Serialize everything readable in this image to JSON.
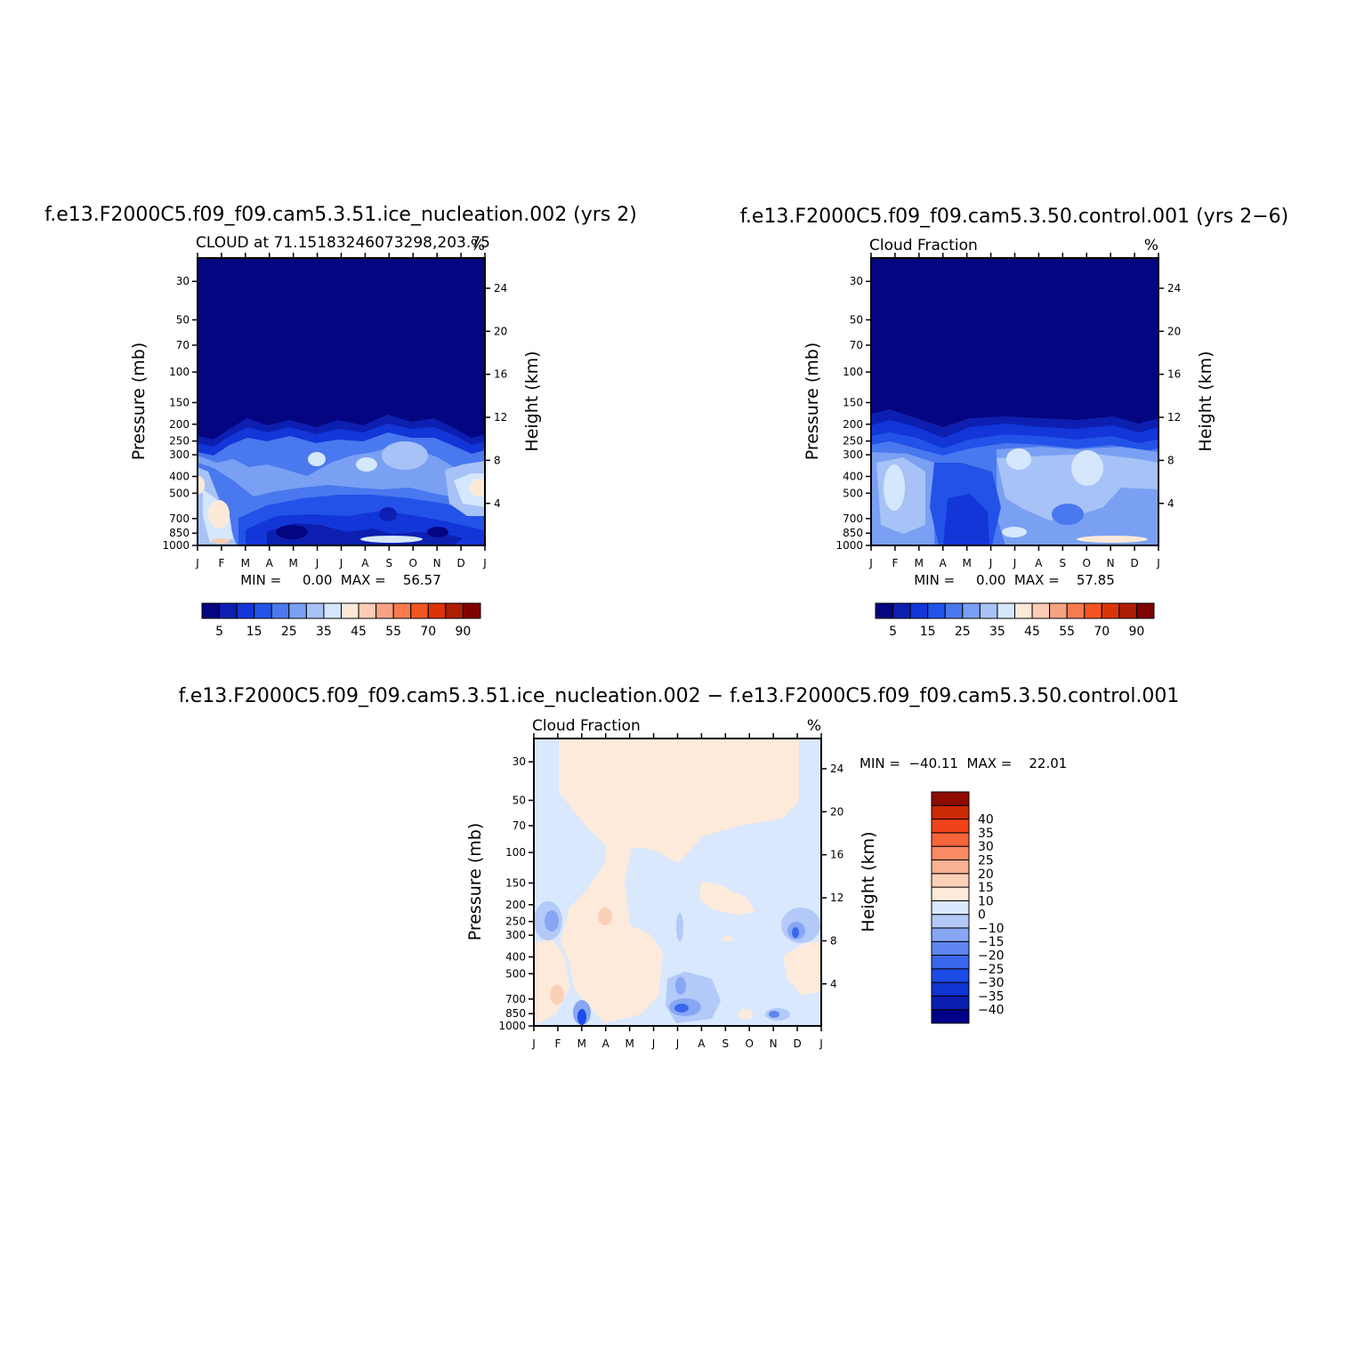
{
  "figure": {
    "title_top_left": "f.e13.F2000C5.f09_f09.cam5.3.51.ice_nucleation.002 (yrs 2)",
    "title_top_right": "f.e13.F2000C5.f09_f09.cam5.3.50.control.001 (yrs 2−6)",
    "title_bottom": "f.e13.F2000C5.f09_f09.cam5.3.51.ice_nucleation.002 − f.e13.F2000C5.f09_f09.cam5.3.50.control.001"
  },
  "chart_data": [
    {
      "type": "heatmap",
      "panel": "test",
      "subtitle_left": "CLOUD at 71.15183246073298,203.75",
      "units": "%",
      "xlabel": "",
      "ylabel": "Pressure (mb)",
      "ylabel_right": "Height (km)",
      "x_tick_labels": [
        "J",
        "F",
        "M",
        "A",
        "M",
        "J",
        "J",
        "A",
        "S",
        "O",
        "N",
        "D",
        "J"
      ],
      "pressure_ticks": [
        30,
        50,
        70,
        100,
        150,
        200,
        250,
        300,
        400,
        500,
        700,
        850,
        1000
      ],
      "height_ticks": [
        4,
        8,
        12,
        16,
        20,
        24
      ],
      "ylim_mb": [
        1000,
        22
      ],
      "log_pressure_axis": true,
      "min_max_text": "MIN =     0.00  MAX =    56.57",
      "min": 0.0,
      "max": 56.57,
      "colorbar": {
        "placement": "bottom",
        "colors": [
          "#040580",
          "#0d1fb0",
          "#1236d8",
          "#2352e8",
          "#4a78ee",
          "#7aa0f3",
          "#a7c2f7",
          "#d5e7fc",
          "#fde9d8",
          "#fcccb4",
          "#f7a282",
          "#f87b4d",
          "#f4541f",
          "#db3409",
          "#ae1d04",
          "#7f0000"
        ],
        "labels": [
          "5",
          "15",
          "25",
          "35",
          "45",
          "55",
          "70",
          "90"
        ]
      }
    },
    {
      "type": "heatmap",
      "panel": "control",
      "subtitle_left": "Cloud Fraction",
      "units": "%",
      "xlabel": "",
      "ylabel": "Pressure (mb)",
      "ylabel_right": "Height (km)",
      "x_tick_labels": [
        "J",
        "F",
        "M",
        "A",
        "M",
        "J",
        "J",
        "A",
        "S",
        "O",
        "N",
        "D",
        "J"
      ],
      "pressure_ticks": [
        30,
        50,
        70,
        100,
        150,
        200,
        250,
        300,
        400,
        500,
        700,
        850,
        1000
      ],
      "height_ticks": [
        4,
        8,
        12,
        16,
        20,
        24
      ],
      "ylim_mb": [
        1000,
        22
      ],
      "log_pressure_axis": true,
      "min_max_text": "MIN =     0.00  MAX =    57.85",
      "min": 0.0,
      "max": 57.85,
      "colorbar": {
        "placement": "bottom",
        "colors": [
          "#040580",
          "#0d1fb0",
          "#1236d8",
          "#2352e8",
          "#4a78ee",
          "#7aa0f3",
          "#a7c2f7",
          "#d5e7fc",
          "#fde9d8",
          "#fcccb4",
          "#f7a282",
          "#f87b4d",
          "#f4541f",
          "#db3409",
          "#ae1d04",
          "#7f0000"
        ],
        "labels": [
          "5",
          "15",
          "25",
          "35",
          "45",
          "55",
          "70",
          "90"
        ]
      }
    },
    {
      "type": "heatmap",
      "panel": "difference",
      "subtitle_left": "Cloud Fraction",
      "units": "%",
      "xlabel": "",
      "ylabel": "Pressure (mb)",
      "ylabel_right": "Height (km)",
      "x_tick_labels": [
        "J",
        "F",
        "M",
        "A",
        "M",
        "J",
        "J",
        "A",
        "S",
        "O",
        "N",
        "D",
        "J"
      ],
      "pressure_ticks": [
        30,
        50,
        70,
        100,
        150,
        200,
        250,
        300,
        400,
        500,
        700,
        850,
        1000
      ],
      "height_ticks": [
        4,
        8,
        12,
        16,
        20,
        24
      ],
      "ylim_mb": [
        1000,
        22
      ],
      "log_pressure_axis": true,
      "min_max_text": "MIN =  −40.11  MAX =    22.01",
      "min": -40.11,
      "max": 22.01,
      "colorbar": {
        "placement": "right",
        "colors": [
          "#00008a",
          "#0a1eb2",
          "#1034d2",
          "#1d4be6",
          "#3a66ec",
          "#5f86f0",
          "#87a7f4",
          "#b3c9f8",
          "#d9e8fd",
          "#fdeadb",
          "#fcd0b6",
          "#f9b093",
          "#f88b64",
          "#f6653a",
          "#f24219",
          "#cb2904",
          "#8f0b00"
        ],
        "labels": [
          "−40",
          "−35",
          "−30",
          "−25",
          "−20",
          "−15",
          "−10",
          "0",
          "10",
          "15",
          "20",
          "25",
          "30",
          "35",
          "40"
        ]
      }
    }
  ]
}
